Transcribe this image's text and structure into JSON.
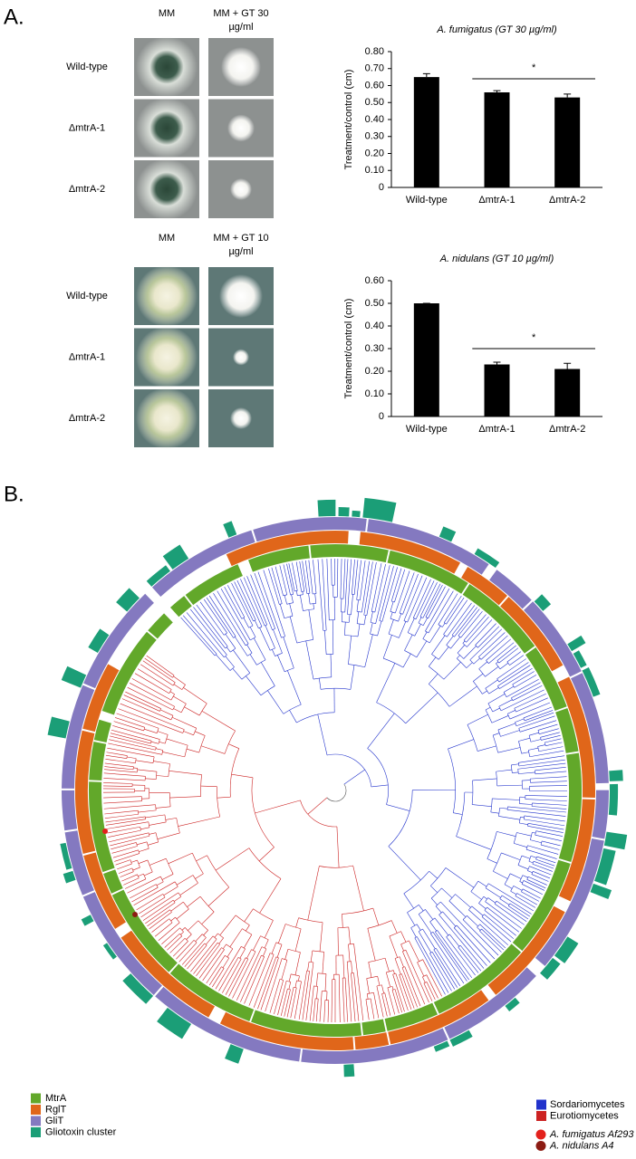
{
  "panel_a": {
    "label": "A.",
    "gt30": {
      "columns": [
        "MM",
        "MM + GT 30 µg/ml"
      ],
      "rows": [
        "Wild-type",
        "ΔmtrA-1",
        "ΔmtrA-2"
      ]
    },
    "gt10": {
      "columns": [
        "MM",
        "MM + GT 10 µg/ml"
      ],
      "rows": [
        "Wild-type",
        "ΔmtrA-1",
        "ΔmtrA-2"
      ]
    }
  },
  "chart_data": [
    {
      "type": "bar",
      "title": "A. fumigatus (GT 30 µg/ml)",
      "y_label": "Treatment/control (cm)",
      "categories": [
        "Wild-type",
        "ΔmtrA-1",
        "ΔmtrA-2"
      ],
      "values": [
        0.65,
        0.56,
        0.53
      ],
      "errors": [
        0.02,
        0.01,
        0.02
      ],
      "color": "#000000",
      "annotation": "*",
      "ylim": [
        0,
        0.8
      ],
      "yticks": [
        0,
        {
          "value": 0.1,
          "label": "0.10"
        },
        {
          "value": 0.2,
          "label": "0.20"
        },
        {
          "value": 0.3,
          "label": "0.30"
        },
        {
          "value": 0.4,
          "label": "0.40"
        },
        {
          "value": 0.5,
          "label": "0.50"
        },
        {
          "value": 0.6,
          "label": "0.60"
        },
        {
          "value": 0.7,
          "label": "0.70"
        },
        {
          "value": 0.8,
          "label": "0.80"
        }
      ]
    },
    {
      "type": "bar",
      "title": "A. nidulans (GT 10 µg/ml)",
      "y_label": "Treatment/control (cm)",
      "categories": [
        "Wild-type",
        "ΔmtrA-1",
        "ΔmtrA-2"
      ],
      "values": [
        0.5,
        0.23,
        0.21
      ],
      "errors": [
        0,
        0.01,
        0.025
      ],
      "color": "#000000",
      "annotation": "*",
      "ylim": [
        0,
        0.6
      ],
      "yticks": [
        0,
        {
          "value": 0.1,
          "label": "0.10"
        },
        {
          "value": 0.2,
          "label": "0.20"
        },
        {
          "value": 0.3,
          "label": "0.30"
        },
        {
          "value": 0.4,
          "label": "0.40"
        },
        {
          "value": 0.5,
          "label": "0.50"
        },
        {
          "value": 0.6,
          "label": "0.60"
        }
      ]
    }
  ],
  "panel_b": {
    "label": "B.",
    "gene_tracks": [
      {
        "name": "MtrA",
        "color": "#62a82a"
      },
      {
        "name": "RglT",
        "color": "#e0661a"
      },
      {
        "name": "GliT",
        "color": "#8479c0"
      },
      {
        "name": "Gliotoxin cluster",
        "color": "#1b9e77"
      }
    ],
    "classes": [
      {
        "name": "Sordariomycetes",
        "color": "#2233cc"
      },
      {
        "name": "Eurotiomycetes",
        "color": "#cc2222"
      }
    ],
    "strains": [
      {
        "name": "A. fumigatus Af293",
        "color": "#e3211c"
      },
      {
        "name": "A. nidulans A4",
        "color": "#8c1b13"
      }
    ]
  }
}
